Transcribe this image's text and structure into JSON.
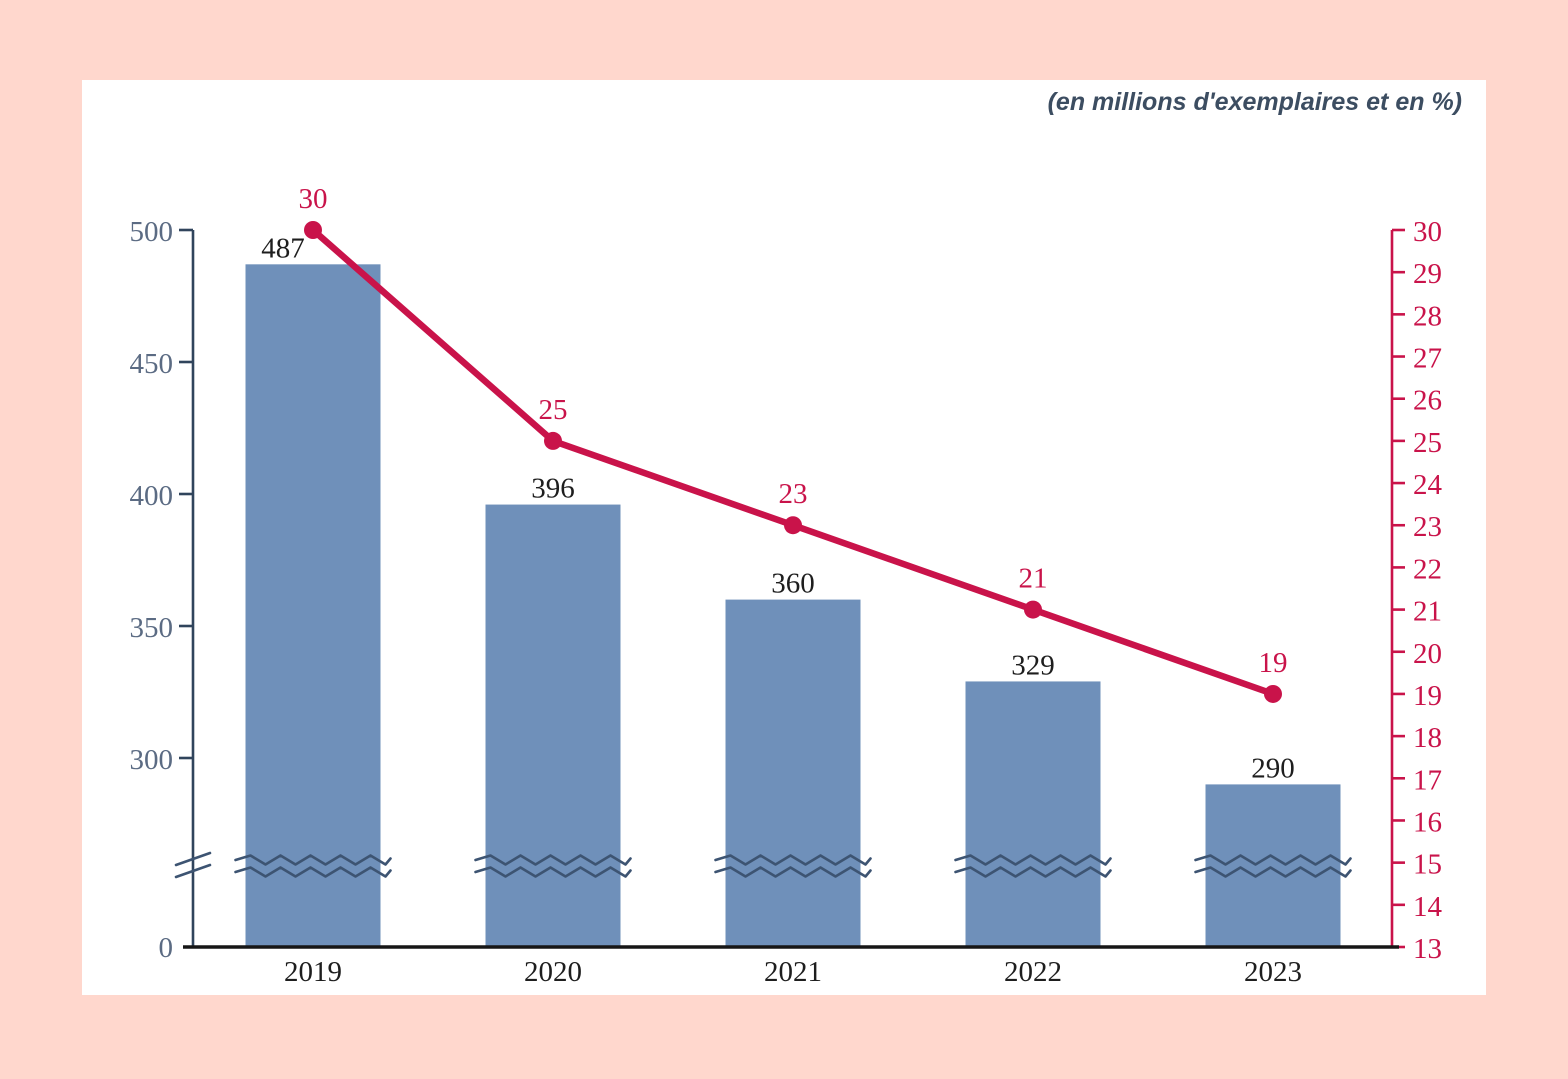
{
  "subtitle": "(en millions d'exemplaires et en %)",
  "colors": {
    "background": "#ffd7cd",
    "card": "#ffffff",
    "bar": "#6f90ba",
    "line": "#c9134a",
    "left_axis_text": "#5b6b83",
    "left_axis_line": "#30445c",
    "x_axis_line": "#161616",
    "break_marks": "#3d5472",
    "text": "#1e1e1e",
    "subtitle_text": "#3c4d61"
  },
  "chart_data": {
    "type": "combo",
    "subtitle": "(en millions d'exemplaires et en %)",
    "categories": [
      "2019",
      "2020",
      "2021",
      "2022",
      "2023"
    ],
    "series": [
      {
        "name": "en millions d'exemplaires",
        "type": "bar",
        "axis": "left",
        "values": [
          487,
          396,
          360,
          329,
          290
        ]
      },
      {
        "name": "en %",
        "type": "line",
        "axis": "right",
        "values": [
          30,
          25,
          23,
          21,
          19
        ]
      }
    ],
    "left_axis": {
      "ticks": [
        500,
        450,
        400,
        350,
        300
      ],
      "zero_label": "0",
      "has_break": true,
      "top_value": 500
    },
    "right_axis": {
      "min": 13,
      "max": 30,
      "step": 1
    },
    "legend": "none",
    "grid": "off"
  }
}
